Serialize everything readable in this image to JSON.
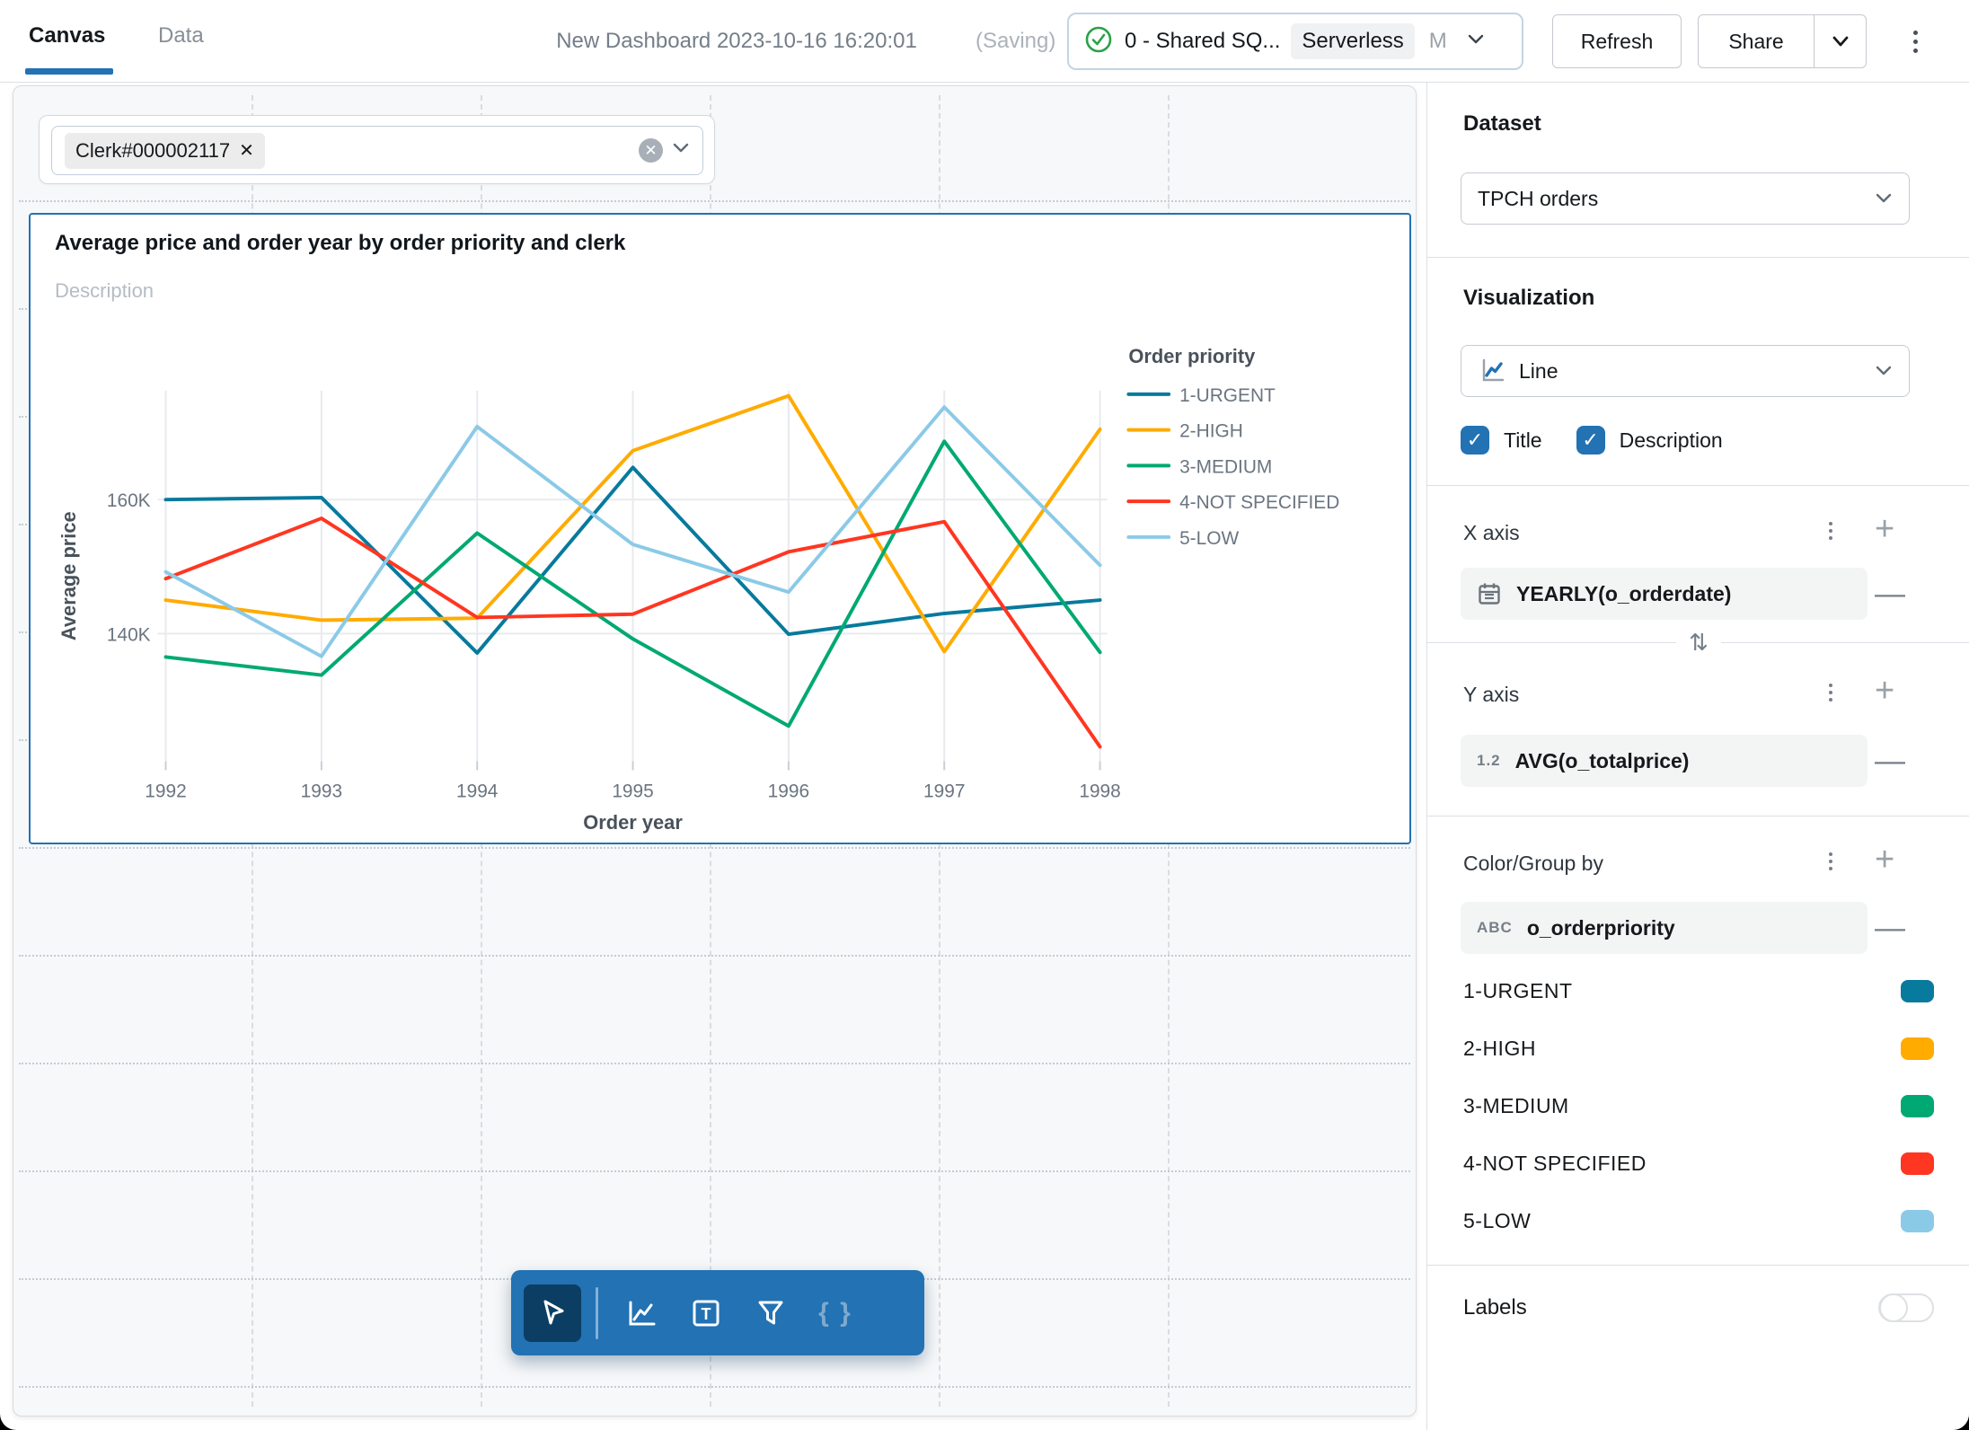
{
  "topbar": {
    "tabs": [
      {
        "label": "Canvas"
      },
      {
        "label": "Data"
      }
    ],
    "title": "New Dashboard 2023-10-16 16:20:01",
    "saving": "(Saving)",
    "compute": {
      "name": "0 - Shared SQ...",
      "badge": "Serverless",
      "size": "M"
    },
    "refresh_label": "Refresh",
    "share_label": "Share"
  },
  "filter": {
    "value": "Clerk#000002117"
  },
  "chart_data": {
    "type": "line",
    "title": "Average price and order year by order priority and clerk",
    "description_placeholder": "Description",
    "xlabel": "Order year",
    "ylabel": "Average price",
    "legend_title": "Order priority",
    "legend_position": "right",
    "grid": true,
    "x": [
      1992,
      1993,
      1994,
      1995,
      1996,
      1997,
      1998
    ],
    "y_ticks": [
      "160K",
      "140K"
    ],
    "y_tick_values": [
      160,
      140
    ],
    "ylim": [
      121,
      176.3
    ],
    "units": "K (thousands)",
    "series": [
      {
        "name": "1-URGENT",
        "color": "#077A9D",
        "values": [
          160.0,
          160.3,
          137.1,
          164.8,
          139.9,
          143.0,
          145.0
        ]
      },
      {
        "name": "2-HIGH",
        "color": "#FFAB00",
        "values": [
          145.0,
          142.0,
          142.3,
          167.3,
          175.5,
          137.3,
          170.5
        ]
      },
      {
        "name": "3-MEDIUM",
        "color": "#00A972",
        "values": [
          136.5,
          133.8,
          155.0,
          139.2,
          126.2,
          168.7,
          137.2
        ]
      },
      {
        "name": "4-NOT SPECIFIED",
        "color": "#FF3621",
        "values": [
          148.2,
          157.2,
          142.4,
          142.9,
          152.2,
          156.7,
          123.1
        ]
      },
      {
        "name": "5-LOW",
        "color": "#8BCAE7",
        "values": [
          149.2,
          136.6,
          170.9,
          153.3,
          146.2,
          173.8,
          150.2
        ]
      }
    ]
  },
  "sidebar": {
    "dataset": {
      "label": "Dataset",
      "value": "TPCH orders"
    },
    "visualization": {
      "label": "Visualization",
      "value": "Line"
    },
    "checkboxes": [
      {
        "label": "Title",
        "checked": true
      },
      {
        "label": "Description",
        "checked": true
      }
    ],
    "x_axis": {
      "label": "X axis",
      "field": "YEARLY(o_orderdate)"
    },
    "y_axis": {
      "label": "Y axis",
      "field": "AVG(o_totalprice)",
      "field_icon": "1.2"
    },
    "group_by": {
      "label": "Color/Group by",
      "field": "o_orderpriority",
      "field_icon": "ABC"
    },
    "labels_toggle": {
      "label": "Labels",
      "on": false
    }
  }
}
